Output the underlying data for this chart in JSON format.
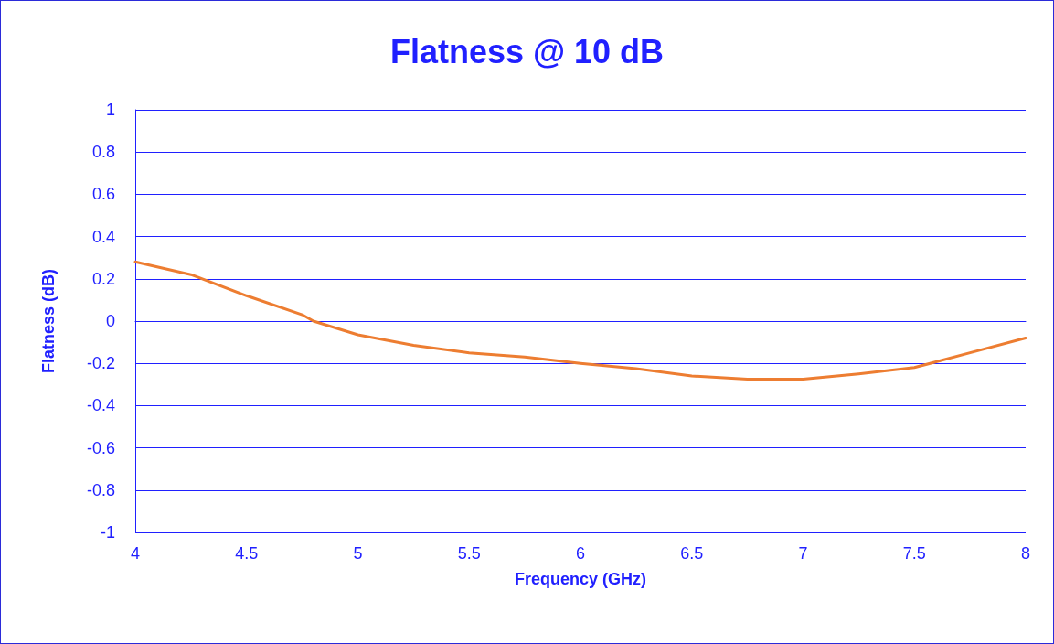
{
  "chart_data": {
    "type": "line",
    "title": "Flatness @ 10 dB",
    "xlabel": "Frequency (GHz)",
    "ylabel": "Flatness (dB)",
    "x": [
      4,
      4.25,
      4.5,
      4.75,
      4.8,
      5,
      5.25,
      5.5,
      5.75,
      6,
      6.25,
      6.5,
      6.75,
      7,
      7.25,
      7.5,
      7.75,
      8
    ],
    "series": [
      {
        "color": "#ed7d31",
        "values": [
          0.28,
          0.22,
          0.12,
          0.03,
          0,
          -0.065,
          -0.115,
          -0.15,
          -0.17,
          -0.2,
          -0.225,
          -0.26,
          -0.275,
          -0.275,
          -0.25,
          -0.22,
          -0.15,
          -0.08
        ]
      }
    ],
    "xlim": [
      4,
      8
    ],
    "xticks": [
      4,
      4.5,
      5,
      5.5,
      6,
      6.5,
      7,
      7.5,
      8
    ],
    "ylim": [
      -1,
      1
    ],
    "yticks": [
      -1,
      -0.8,
      -0.6,
      -0.4,
      -0.2,
      0,
      0.2,
      0.4,
      0.6,
      0.8,
      1
    ],
    "grid": "y",
    "marker": "none",
    "line_style": "solid"
  }
}
